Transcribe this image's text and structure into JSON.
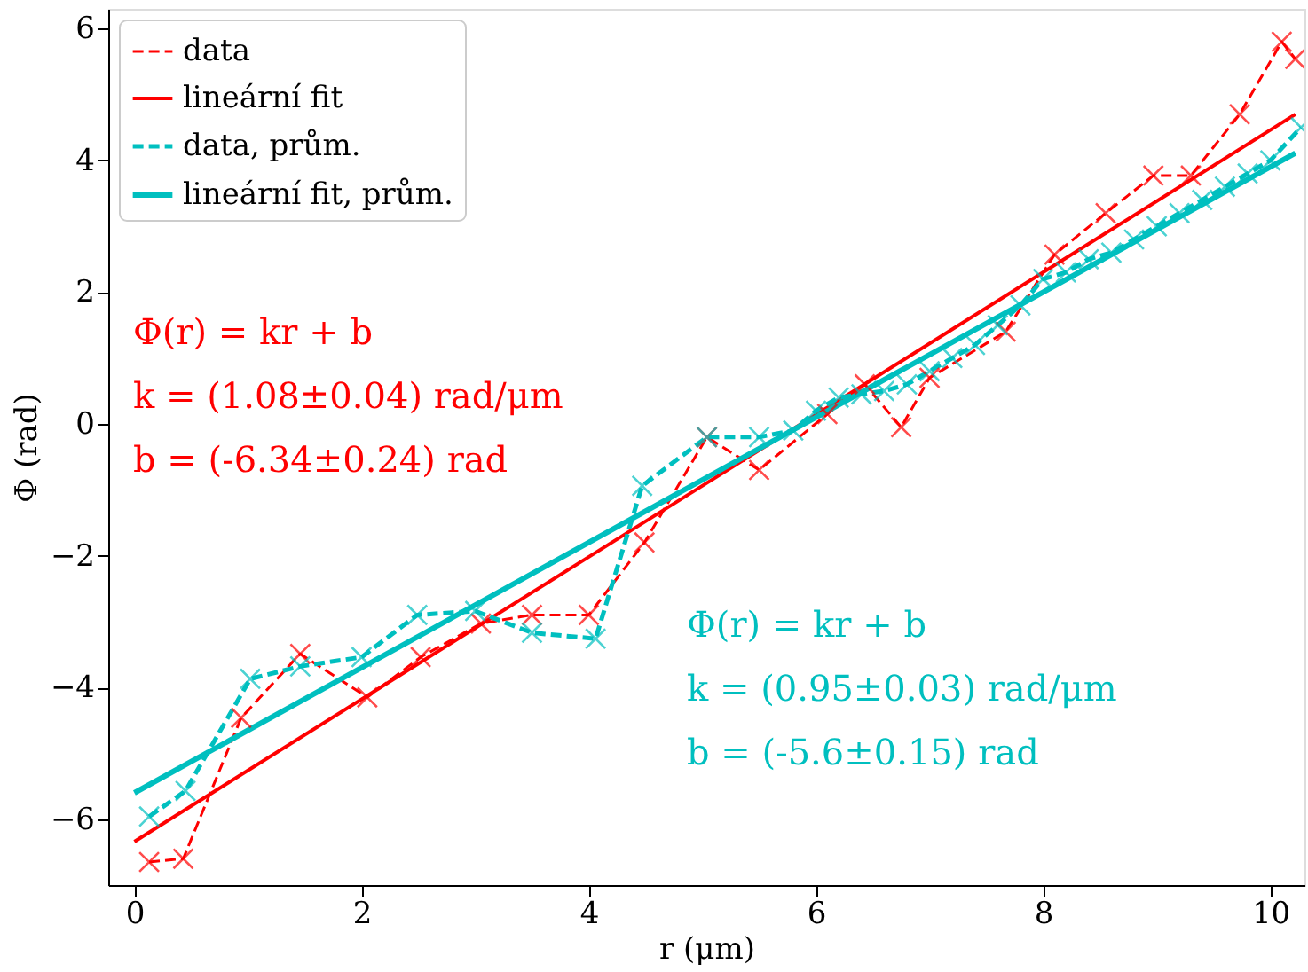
{
  "chart_data": {
    "type": "line",
    "xlabel": "r (μm)",
    "ylabel": "Φ (rad)",
    "xlim": [
      -0.23,
      10.3
    ],
    "ylim": [
      -7.0,
      6.3
    ],
    "xticks": [
      0,
      2,
      4,
      6,
      8,
      10
    ],
    "yticks": [
      {
        "value": -6,
        "label": "−6"
      },
      {
        "value": -4,
        "label": "−4"
      },
      {
        "value": -2,
        "label": "−2"
      },
      0,
      2,
      4,
      6
    ],
    "grid": false,
    "legend": "top left",
    "series": [
      {
        "name": "data",
        "color": "#ff0000",
        "marker": "cross",
        "line_style": "dashed",
        "x": [
          0.13,
          0.43,
          0.94,
          1.46,
          2.05,
          2.52,
          3.05,
          3.5,
          4.0,
          4.49,
          5.04,
          5.5,
          6.1,
          6.43,
          6.75,
          7.0,
          7.67,
          8.1,
          8.55,
          8.97,
          9.3,
          9.73,
          10.1,
          10.22
        ],
        "values": [
          -6.65,
          -6.6,
          -4.46,
          -3.49,
          -4.15,
          -3.54,
          -3.03,
          -2.9,
          -2.9,
          -1.8,
          -0.2,
          -0.7,
          0.15,
          0.6,
          -0.05,
          0.7,
          1.4,
          2.57,
          3.2,
          3.77,
          3.77,
          4.7,
          5.8,
          5.54
        ]
      },
      {
        "name": "lineární fit",
        "color": "#ff0000",
        "marker": "none",
        "line_style": "solid",
        "x": [
          0,
          10.22
        ],
        "values": [
          -6.34,
          4.7
        ]
      },
      {
        "name": "data, prům.",
        "color": "#00bfbf",
        "marker": "cross",
        "line_style": "dashed",
        "x": [
          0.13,
          0.45,
          1.02,
          1.46,
          2.0,
          2.49,
          3.0,
          3.5,
          4.06,
          4.47,
          5.04,
          5.5,
          5.8,
          6.0,
          6.2,
          6.4,
          6.6,
          6.8,
          7.0,
          7.2,
          7.4,
          7.6,
          7.8,
          8.0,
          8.2,
          8.4,
          8.6,
          8.8,
          9.0,
          9.2,
          9.4,
          9.6,
          9.8,
          10.0,
          10.27
        ],
        "values": [
          -5.96,
          -5.57,
          -3.87,
          -3.68,
          -3.54,
          -2.9,
          -2.84,
          -3.17,
          -3.26,
          -0.94,
          -0.2,
          -0.2,
          -0.1,
          0.2,
          0.4,
          0.45,
          0.5,
          0.6,
          0.8,
          1.0,
          1.2,
          1.5,
          1.8,
          2.2,
          2.3,
          2.5,
          2.6,
          2.8,
          3.0,
          3.2,
          3.4,
          3.6,
          3.8,
          4.0,
          4.5
        ]
      },
      {
        "name": "lineární fit, prům.",
        "color": "#00bfbf",
        "marker": "none",
        "line_style": "solid",
        "x": [
          0,
          10.22
        ],
        "values": [
          -5.6,
          4.11
        ]
      }
    ],
    "annotations": [
      "Φ(r) = kr + b",
      "k = (1.08±0.04) rad/μm",
      "b = (-6.34±0.24) rad",
      "Φ(r) = kr + b",
      "k = (0.95±0.03) rad/μm",
      "b = (-5.6±0.15) rad"
    ]
  }
}
